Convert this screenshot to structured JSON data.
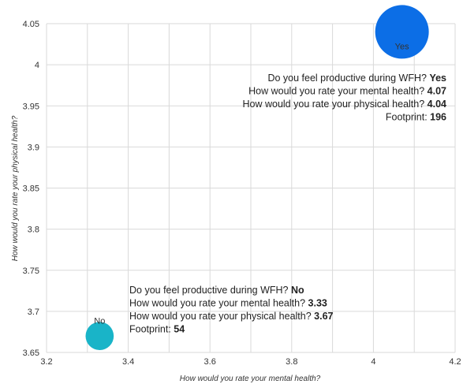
{
  "chart_data": {
    "type": "scatter",
    "title": "",
    "xlabel": "How would you rate your mental health?",
    "ylabel": "How would you rate your physical health?",
    "xlim": [
      3.2,
      4.2
    ],
    "ylim": [
      3.65,
      4.05
    ],
    "xticks": [
      3.2,
      3.4,
      3.6,
      3.8,
      4,
      4.2
    ],
    "yticks": [
      3.65,
      3.7,
      3.75,
      3.8,
      3.85,
      3.9,
      3.95,
      4,
      4.05
    ],
    "xtick_labels": [
      "3.2",
      "3.4",
      "3.6",
      "3.8",
      "4",
      "4.2"
    ],
    "ytick_labels": [
      "3.65",
      "3.7",
      "3.75",
      "3.8",
      "3.85",
      "3.9",
      "3.95",
      "4",
      "4.05"
    ],
    "grid": true,
    "legend": "none",
    "points": [
      {
        "label": "Yes",
        "x": 4.07,
        "y": 4.04,
        "footprint": 196,
        "color": "#0c6ee6"
      },
      {
        "label": "No",
        "x": 3.33,
        "y": 3.67,
        "footprint": 54,
        "color": "#19b4c8"
      }
    ],
    "annotations": [
      {
        "point": "Yes",
        "align": "right",
        "lines": [
          {
            "text": "Do you feel productive during WFH?",
            "value": "Yes"
          },
          {
            "text": "How would you rate your mental health?",
            "value": "4.07"
          },
          {
            "text": "How would you rate your physical health?",
            "value": "4.04"
          },
          {
            "text": "Footprint:",
            "value": "196"
          }
        ]
      },
      {
        "point": "No",
        "align": "left",
        "lines": [
          {
            "text": "Do you feel productive during WFH?",
            "value": "No"
          },
          {
            "text": "How would you rate your mental health?",
            "value": "3.33"
          },
          {
            "text": "How would you rate your physical health?",
            "value": "3.67"
          },
          {
            "text": "Footprint:",
            "value": "54"
          }
        ]
      }
    ]
  }
}
